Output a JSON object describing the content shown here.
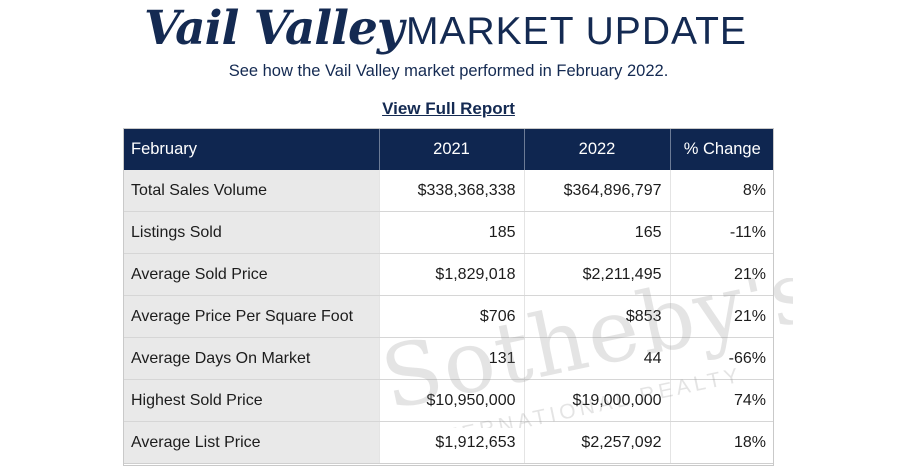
{
  "header": {
    "brand": "Vail Valley",
    "title": "MARKET UPDATE",
    "subtitle": "See how the Vail Valley market performed in February 2022.",
    "report_link": "View Full Report"
  },
  "watermark": {
    "line1": "Sotheby's",
    "line2": "INTERNATIONAL REALTY"
  },
  "table": {
    "columns": [
      "February",
      "2021",
      "2022",
      "% Change"
    ],
    "rows": [
      [
        "Total Sales Volume",
        "$338,368,338",
        "$364,896,797",
        "8%"
      ],
      [
        "Listings Sold",
        "185",
        "165",
        "-11%"
      ],
      [
        "Average Sold Price",
        "$1,829,018",
        "$2,211,495",
        "21%"
      ],
      [
        "Average Price Per Square Foot",
        "$706",
        "$853",
        "21%"
      ],
      [
        "Average Days On Market",
        "131",
        "44",
        "-66%"
      ],
      [
        "Highest Sold Price",
        "$10,950,000",
        "$19,000,000",
        "74%"
      ],
      [
        "Average List Price",
        "$1,912,653",
        "$2,257,092",
        "18%"
      ]
    ]
  },
  "colors": {
    "navy": "#0f2650",
    "title_navy": "#142a52",
    "label_cell_bg": "#e9e9e9"
  }
}
